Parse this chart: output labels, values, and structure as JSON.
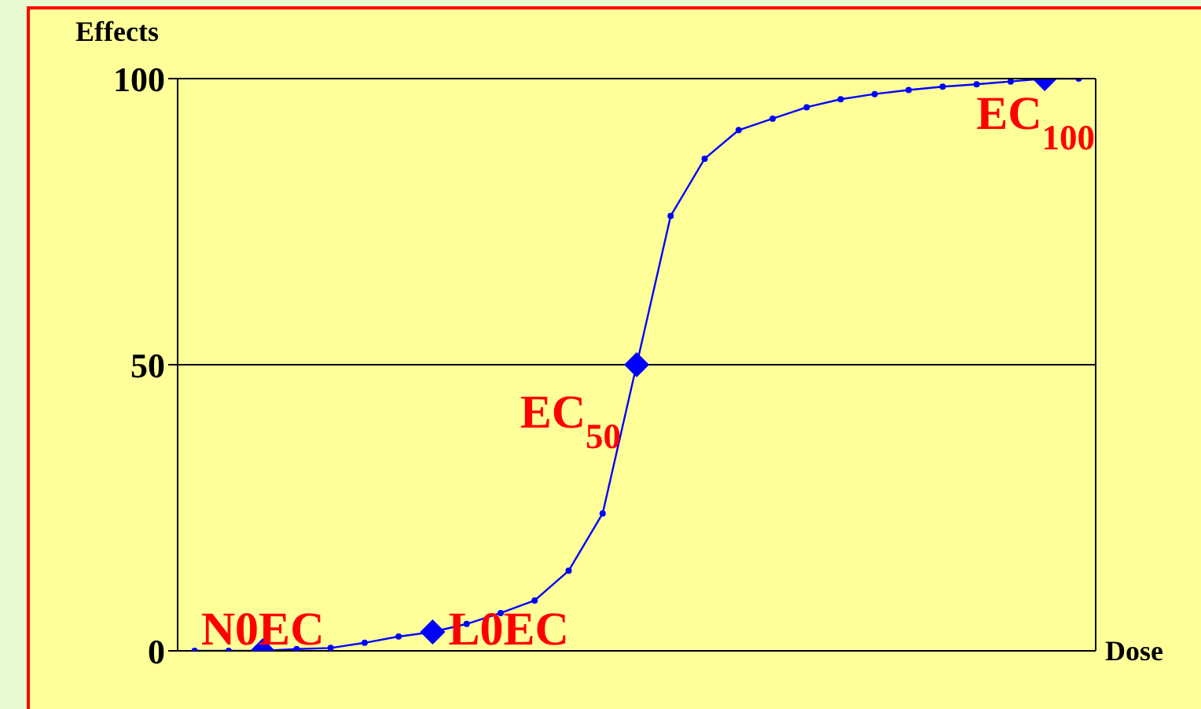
{
  "chart_data": {
    "type": "line",
    "ylabel": "Effects",
    "xlabel": "Dose",
    "categories": [
      null,
      null,
      null,
      null,
      null,
      null,
      null,
      null,
      null,
      null,
      null,
      null,
      null,
      null,
      null,
      null,
      null,
      null,
      null,
      null,
      null,
      null,
      null,
      null,
      null,
      null,
      null
    ],
    "series": [
      {
        "color": "#0000ff",
        "marker": "circle",
        "values": [
          0,
          0,
          0,
          0.3,
          0.5,
          1.4,
          2.5,
          3.3,
          4.7,
          6.6,
          8.8,
          14,
          24,
          50,
          76,
          86,
          91,
          93,
          95,
          96.4,
          97.3,
          98,
          98.6,
          99,
          99.5,
          100,
          100
        ]
      },
      {
        "type": "scatter",
        "color": "#0000ff",
        "marker": "diamond",
        "values": [
          null,
          null,
          0,
          null,
          null,
          null,
          null,
          3.3,
          null,
          null,
          null,
          null,
          null,
          50,
          null,
          null,
          null,
          null,
          null,
          null,
          null,
          null,
          null,
          null,
          null,
          100,
          null
        ]
      }
    ],
    "ylim": [
      0,
      100
    ],
    "yticks": [
      0,
      50,
      100
    ],
    "grid": "y",
    "tick_labels": "y",
    "annotations": [
      "N0EC",
      "L0EC",
      "EC$_{50}$",
      "EC$_{100}$"
    ]
  }
}
